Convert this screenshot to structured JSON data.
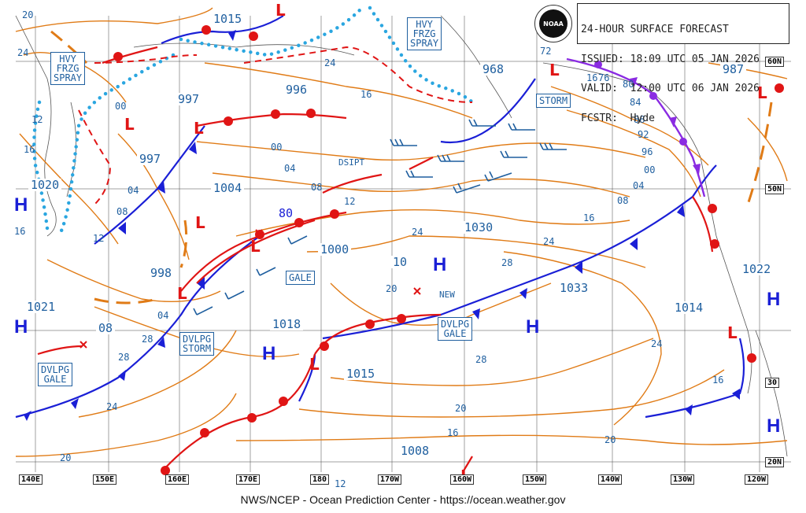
{
  "header": {
    "line1": "24-HOUR SURFACE FORECAST",
    "line2": "ISSUED: 18:09 UTC 05 JAN 2026",
    "line3": "VALID:  12:00 UTC 06 JAN 2026",
    "line4": "FCSTR:  Hyde",
    "logo_text": "NOAA"
  },
  "footer": "NWS/NCEP - Ocean Prediction Center - https://ocean.weather.gov",
  "longitudes": [
    "140E",
    "150E",
    "160E",
    "170E",
    "180",
    "170W",
    "160W",
    "150W",
    "140W",
    "130W",
    "120W"
  ],
  "latitudes": [
    "60N",
    "50N",
    "30",
    "20N"
  ],
  "warning_boxes": {
    "hvy_spray_w": [
      "HVY",
      "FRZG",
      "SPRAY"
    ],
    "hvy_spray_e": [
      "HVY",
      "FRZG",
      "SPRAY"
    ],
    "storm_ne": "STORM",
    "gale_mid": "GALE",
    "dvlpg_storm": [
      "DVLPG",
      "STORM"
    ],
    "dvlpg_gale_w": [
      "DVLPG",
      "GALE"
    ],
    "dvlpg_gale_c": [
      "DVLPG",
      "GALE"
    ]
  },
  "pressure_boxes": [
    "1015",
    "997",
    "996",
    "997",
    "1004",
    "1020",
    "998",
    "1021",
    "08",
    "1000",
    "10",
    "1018",
    "1015",
    "1030",
    "1033",
    "1014",
    "1022",
    "968",
    "987",
    "80",
    "1008"
  ],
  "isobar_labels": [
    "20",
    "24",
    "12",
    "16",
    "00",
    "04",
    "08",
    "12",
    "04",
    "00",
    "04",
    "08",
    "12",
    "16",
    "24",
    "28",
    "28",
    "24",
    "20",
    "16",
    "16",
    "16",
    "72",
    "76",
    "80",
    "84",
    "88",
    "92",
    "96",
    "00",
    "04",
    "08",
    "16",
    "24",
    "28",
    "20",
    "20",
    "24",
    "28",
    "12",
    "20",
    "16",
    "16",
    "24"
  ],
  "annotations": {
    "dsipt": "DSIPT",
    "new": "NEW"
  },
  "centers_high": [
    "H",
    "H",
    "H",
    "H",
    "H",
    "H",
    "H"
  ],
  "colors": {
    "isobar": "#e07b16",
    "cold": "#1a1fd6",
    "warm": "#e01515",
    "occluded": "#8a2be2",
    "text": "#1f5f9f",
    "grid": "#333"
  }
}
